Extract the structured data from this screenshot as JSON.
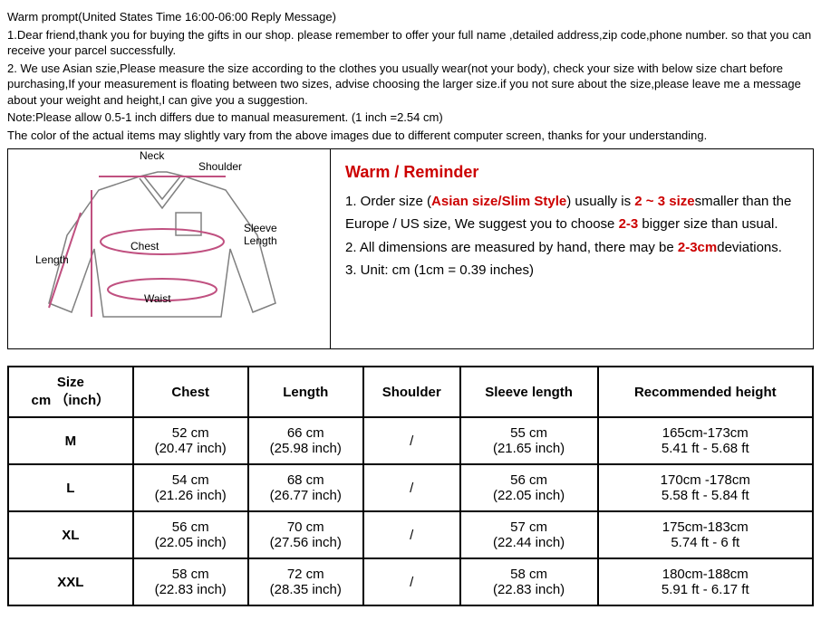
{
  "intro": {
    "title": "Warm prompt(United States Time 16:00-06:00 Reply Message)",
    "line1": "1.Dear friend,thank you for buying the gifts in our shop. please remember to offer your full name ,detailed address,zip code,phone number. so that you can receive your parcel successfully.",
    "line2": "2.   We use Asian szie,Please measure the size according to the clothes you usually wear(not your body), check your size with below size chart before purchasing,If your measurement is floating between two sizes, advise choosing the larger size.if you not sure about the size,please leave me a message about your weight and height,I can give you a suggestion.",
    "note1": "Note:Please allow 0.5-1 inch differs due to manual measurement. (1 inch =2.54 cm)",
    "note2": "The color of the actual items may slightly vary from the above images due to different computer screen, thanks for your understanding."
  },
  "diagram": {
    "neck": "Neck",
    "shoulder": "Shoulder",
    "chest": "Chest",
    "sleeve": "Sleeve Length",
    "length": "Length",
    "waist": "Waist",
    "line_color": "#c05080",
    "arrow_color": "#808080"
  },
  "reminder": {
    "heading": "Warm / Reminder",
    "l1a": "1. Order size (",
    "l1b": "Asian size/Slim Style",
    "l1c": ") usually is ",
    "l1d": "2 ~ 3 size",
    "l1e": "smaller than the Europe / US size, We suggest you to choose ",
    "l1f": "2-3",
    "l1g": " bigger size than usual.",
    "l2a": "2. All dimensions are measured by hand, there may be ",
    "l2b": "2-3cm",
    "l2c": "deviations.",
    "l3": "3. Unit: cm (1cm = 0.39 inches)"
  },
  "table": {
    "headers": {
      "size1": "Size",
      "size2": "cm （inch）",
      "chest": "Chest",
      "length": "Length",
      "shoulder": "Shoulder",
      "sleeve": "Sleeve length",
      "height": "Recommended height"
    },
    "rows": [
      {
        "size": "M",
        "chest1": "52 cm",
        "chest2": "(20.47 inch)",
        "length1": "66 cm",
        "length2": "(25.98 inch)",
        "shoulder": "/",
        "sleeve1": "55 cm",
        "sleeve2": "(21.65 inch)",
        "height1": "165cm-173cm",
        "height2": "5.41 ft - 5.68 ft"
      },
      {
        "size": "L",
        "chest1": "54 cm",
        "chest2": "(21.26 inch)",
        "length1": "68 cm",
        "length2": "(26.77 inch)",
        "shoulder": "/",
        "sleeve1": "56 cm",
        "sleeve2": "(22.05 inch)",
        "height1": "170cm -178cm",
        "height2": "5.58 ft - 5.84 ft"
      },
      {
        "size": "XL",
        "chest1": "56 cm",
        "chest2": "(22.05 inch)",
        "length1": "70 cm",
        "length2": "(27.56 inch)",
        "shoulder": "/",
        "sleeve1": "57 cm",
        "sleeve2": "(22.44 inch)",
        "height1": "175cm-183cm",
        "height2": "5.74 ft - 6 ft"
      },
      {
        "size": "XXL",
        "chest1": "58 cm",
        "chest2": "(22.83 inch)",
        "length1": "72 cm",
        "length2": "(28.35 inch)",
        "shoulder": "/",
        "sleeve1": "58 cm",
        "sleeve2": "(22.83 inch)",
        "height1": "180cm-188cm",
        "height2": "5.91 ft - 6.17 ft"
      }
    ]
  }
}
